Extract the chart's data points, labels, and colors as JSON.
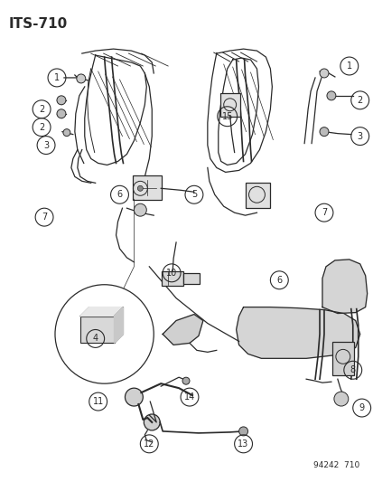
{
  "title": "ITS–710",
  "subtitle": "94242  710",
  "bg": "#ffffff",
  "lc": "#2a2a2a",
  "fig_w": 4.14,
  "fig_h": 5.33,
  "dpi": 100
}
